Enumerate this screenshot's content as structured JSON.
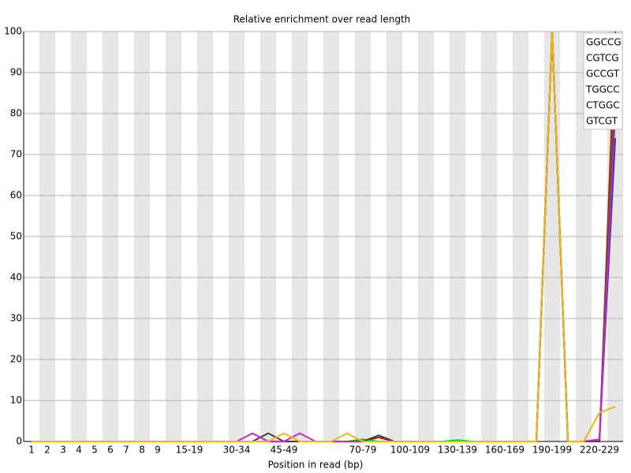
{
  "chart_data": {
    "type": "line",
    "title": "Relative enrichment over read length",
    "x_label": "Position in read (bp)",
    "categories": [
      "1",
      "2",
      "3",
      "4",
      "5",
      "6",
      "7",
      "8",
      "9",
      null,
      "15-19",
      null,
      null,
      "30-34",
      null,
      null,
      "45-49",
      null,
      null,
      null,
      null,
      "70-79",
      null,
      null,
      "100-109",
      null,
      null,
      "130-139",
      null,
      null,
      "160-169",
      null,
      null,
      "190-199",
      null,
      null,
      "220-229",
      null
    ],
    "ylim": [
      0,
      100
    ],
    "yticks": [
      0,
      10,
      20,
      30,
      40,
      50,
      60,
      70,
      80,
      90,
      100
    ],
    "grid": true,
    "legend": "upper right",
    "series": [
      {
        "name": "GGCCG",
        "color": "#e00000",
        "values": [
          0,
          0,
          0,
          0,
          0,
          0,
          0,
          0,
          0,
          0,
          0,
          0,
          0,
          0,
          0,
          0,
          0,
          0,
          0,
          0,
          0,
          0,
          1,
          0,
          0,
          0,
          0,
          0,
          0,
          0,
          0,
          0,
          0,
          100,
          0,
          0,
          0,
          100
        ]
      },
      {
        "name": "CGTCG",
        "color": "#2828b0",
        "values": [
          0,
          0,
          0,
          0,
          0,
          0,
          0,
          0,
          0,
          0,
          0,
          0,
          0,
          0,
          0,
          0,
          0,
          0,
          0,
          0,
          0,
          0,
          0,
          0,
          0,
          0,
          0,
          0,
          0,
          0,
          0,
          0,
          0,
          100,
          0,
          0,
          0.5,
          74
        ]
      },
      {
        "name": "GCCGT",
        "color": "#00c000",
        "values": [
          0,
          0,
          0,
          0,
          0,
          0,
          0,
          0,
          0,
          0,
          0,
          0,
          0,
          0,
          0,
          0,
          0,
          0,
          0,
          0,
          0,
          0.5,
          0,
          0,
          0,
          0,
          0,
          0.3,
          0,
          0,
          0,
          0,
          0,
          100,
          0,
          0,
          0,
          90
        ]
      },
      {
        "name": "TGGCC",
        "color": "#404040",
        "values": [
          0,
          0,
          0,
          0,
          0,
          0,
          0,
          0,
          0,
          0,
          0,
          0,
          0,
          0,
          0,
          2,
          0,
          0,
          0,
          0,
          0,
          0,
          1.5,
          0,
          0,
          0,
          0,
          0,
          0,
          0,
          0,
          0,
          0,
          100,
          0,
          0,
          0,
          85
        ]
      },
      {
        "name": "CTGGC",
        "color": "#d020d0",
        "values": [
          0,
          0,
          0,
          0,
          0,
          0,
          0,
          0,
          0,
          0,
          0,
          0,
          0,
          0,
          2,
          0,
          0,
          2,
          0,
          0,
          0,
          0,
          0,
          0,
          0,
          0,
          0,
          0,
          0,
          0,
          0,
          0,
          0,
          100,
          0,
          0,
          0.5,
          80
        ]
      },
      {
        "name": "GTCGT",
        "color": "#f0b800",
        "values": [
          0,
          0,
          0,
          0,
          0,
          0,
          0,
          0,
          0,
          0,
          0,
          0,
          0,
          0,
          0,
          0,
          2,
          0,
          0,
          0,
          2,
          0,
          0,
          0,
          0,
          0,
          0,
          0,
          0,
          0,
          0,
          0,
          0,
          100,
          0,
          0,
          7,
          8.5
        ]
      }
    ]
  }
}
